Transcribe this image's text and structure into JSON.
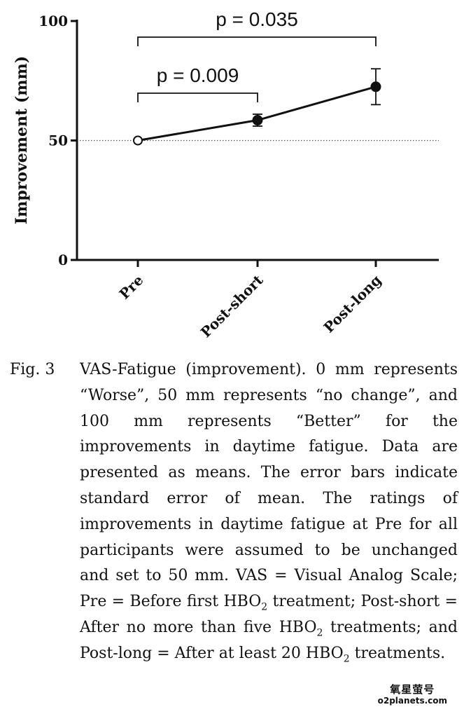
{
  "chart_data": {
    "type": "line",
    "ylabel": "Improvement (mm)",
    "xlabel": "",
    "ylim": [
      0,
      100
    ],
    "yticks": [
      0,
      50,
      100
    ],
    "categories": [
      "Pre",
      "Post-short",
      "Post-long"
    ],
    "series": [
      {
        "name": "VAS-Fatigue improvement",
        "values": [
          50,
          58.5,
          72.5
        ],
        "errors": [
          0,
          2.5,
          7.5
        ],
        "markers": [
          "open",
          "filled",
          "filled"
        ]
      }
    ],
    "reference_line": {
      "y": 50,
      "style": "dotted"
    },
    "annotations": [
      {
        "text": "p = 0.009",
        "from": "Pre",
        "to": "Post-short"
      },
      {
        "text": "p = 0.035",
        "from": "Pre",
        "to": "Post-long"
      }
    ]
  },
  "caption": {
    "label": "Fig. 3",
    "body_parts": [
      "VAS-Fatigue (improvement). 0 mm represents “Worse”, 50 mm represents “no change”, and 100 mm represents “Better” for the improvements in daytime fatigue. Data are presented as means. The error bars indicate standard error of mean. The ratings of improvements in daytime fatigue at Pre for all participants were assumed to be unchanged and set to 50 mm. VAS = Visual Analog Scale; Pre = Before first HBO",
      "2",
      " treatment; Post-short = After no more than five HBO",
      "2",
      " treatments; and Post-long = After at least 20 HBO",
      "2",
      " treatments."
    ]
  },
  "watermark": {
    "line1": "氧星萤号",
    "line2": "o2planets.com"
  }
}
